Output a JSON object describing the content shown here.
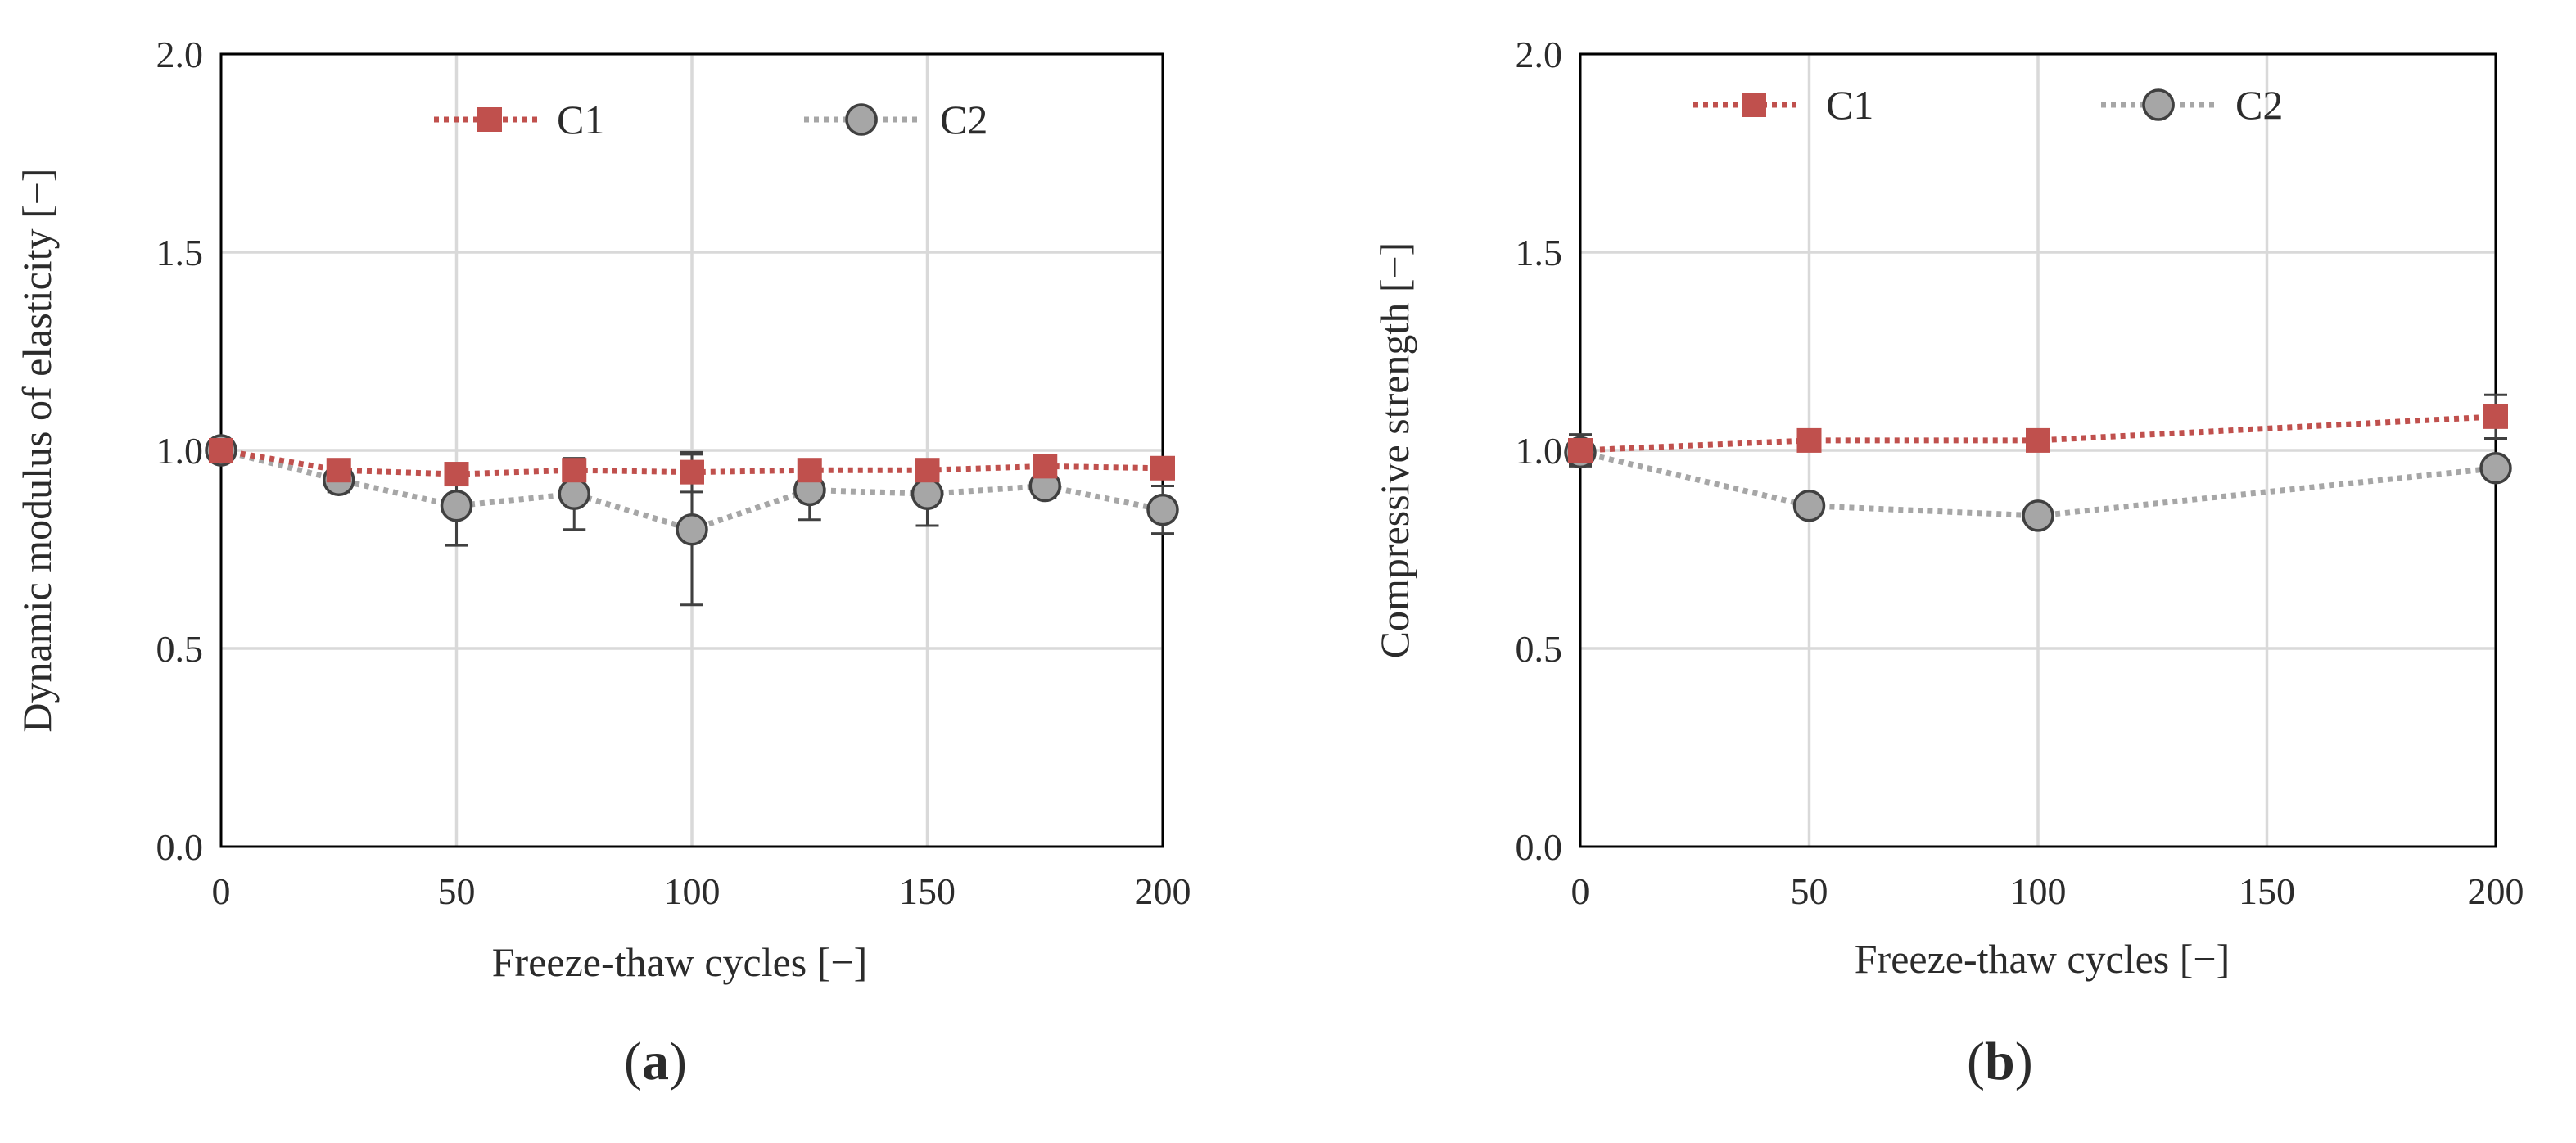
{
  "chart_data": [
    {
      "type": "line",
      "panel": "a",
      "caption_label": "a",
      "xlabel": "Freeze-thaw cycles [−]",
      "ylabel": "Dynamic modulus of elasticity [−]",
      "xlim": [
        0,
        200
      ],
      "ylim": [
        0,
        2.0
      ],
      "x_ticks": [
        0,
        50,
        100,
        150,
        200
      ],
      "x_tick_labels": [
        "0",
        "50",
        "100",
        "150",
        "200"
      ],
      "y_ticks": [
        0,
        0.5,
        1.0,
        1.5,
        2.0
      ],
      "y_tick_labels": [
        "0.0",
        "0.5",
        "1.0",
        "1.5",
        "2.0"
      ],
      "x_gridlines": [
        50,
        100,
        150,
        200
      ],
      "y_gridlines": [
        0.5,
        1.0,
        1.5,
        2.0
      ],
      "grid": true,
      "legend": "top",
      "series": [
        {
          "name": "C1",
          "marker": "square",
          "color": "#c0504d",
          "x": [
            0,
            25,
            50,
            75,
            100,
            125,
            150,
            175,
            200
          ],
          "values": [
            1.0,
            0.95,
            0.94,
            0.95,
            0.945,
            0.95,
            0.95,
            0.96,
            0.955
          ],
          "errors": [
            0.02,
            0.02,
            0.02,
            0.02,
            0.05,
            0.02,
            0.02,
            0.02,
            0.02
          ]
        },
        {
          "name": "C2",
          "marker": "circle",
          "color": "#a6a6a6",
          "x": [
            0,
            25,
            50,
            75,
            100,
            125,
            150,
            175,
            200
          ],
          "values": [
            1.0,
            0.925,
            0.86,
            0.89,
            0.8,
            0.9,
            0.89,
            0.91,
            0.85
          ],
          "errors": [
            0.02,
            0.03,
            0.1,
            0.09,
            0.19,
            0.075,
            0.08,
            0.03,
            0.06
          ]
        }
      ]
    },
    {
      "type": "line",
      "panel": "b",
      "caption_label": "b",
      "xlabel": "Freeze-thaw cycles [−]",
      "ylabel": "Compressive strength [−]",
      "xlim": [
        0,
        200
      ],
      "ylim": [
        0,
        2.0
      ],
      "x_ticks": [
        0,
        50,
        100,
        150,
        200
      ],
      "x_tick_labels": [
        "0",
        "50",
        "100",
        "150",
        "200"
      ],
      "y_ticks": [
        0,
        0.5,
        1.0,
        1.5,
        2.0
      ],
      "y_tick_labels": [
        "0.0",
        "0.5",
        "1.0",
        "1.5",
        "2.0"
      ],
      "x_gridlines": [
        50,
        100,
        150,
        200
      ],
      "y_gridlines": [
        0.5,
        1.0,
        1.5,
        2.0
      ],
      "grid": true,
      "legend": "top",
      "series": [
        {
          "name": "C1",
          "marker": "square",
          "color": "#c0504d",
          "x": [
            0,
            50,
            100,
            200
          ],
          "values": [
            1.0,
            1.025,
            1.025,
            1.085
          ],
          "errors": [
            0.04,
            0.02,
            0.02,
            0.055
          ]
        },
        {
          "name": "C2",
          "marker": "circle",
          "color": "#a6a6a6",
          "x": [
            0,
            50,
            100,
            200
          ],
          "values": [
            0.995,
            0.86,
            0.835,
            0.955
          ],
          "errors": [
            0.03,
            0.02,
            0.02,
            0.02
          ]
        }
      ]
    }
  ]
}
